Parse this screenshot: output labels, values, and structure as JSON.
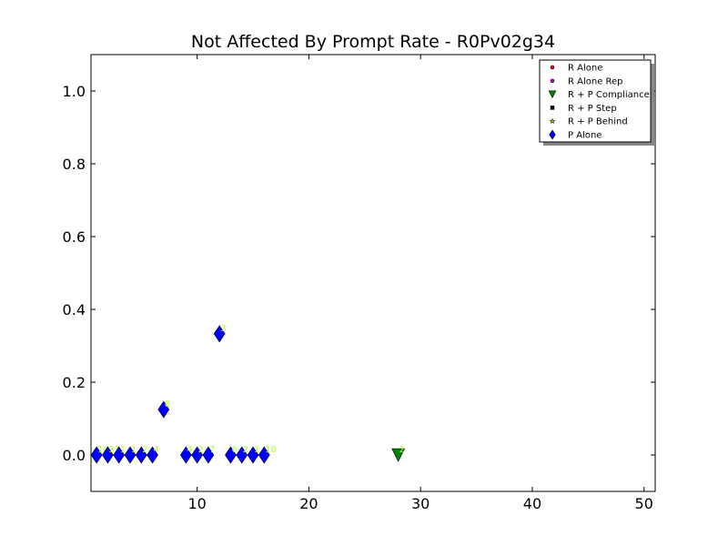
{
  "chart_data": {
    "type": "scatter",
    "title": "Not Affected By Prompt Rate - R0Pv02g34",
    "xlabel": "",
    "ylabel": "",
    "xlim": [
      0.5,
      51
    ],
    "ylim": [
      -0.1,
      1.1
    ],
    "xticks": [
      10,
      20,
      30,
      40,
      50
    ],
    "yticks": [
      0.0,
      0.2,
      0.4,
      0.6,
      0.8,
      1.0
    ],
    "xtick_labels": [
      "10",
      "20",
      "30",
      "40",
      "50"
    ],
    "ytick_labels": [
      "0.0",
      "0.2",
      "0.4",
      "0.6",
      "0.8",
      "1.0"
    ],
    "grid": false,
    "legend_position": "top-right",
    "series": [
      {
        "name": "R Alone",
        "marker": "circle",
        "color": "#ff0000",
        "points": []
      },
      {
        "name": "R Alone Rep",
        "marker": "circle",
        "color": "#bf00bf",
        "points": []
      },
      {
        "name": "R + P Compliance",
        "marker": "triangle-down",
        "color": "#008000",
        "points": [
          {
            "x": 28,
            "y": 0.0,
            "label": "2"
          }
        ]
      },
      {
        "name": "R + P Step",
        "marker": "square",
        "color": "#000000",
        "points": []
      },
      {
        "name": "R + P Behind",
        "marker": "star",
        "color": "#ffff00",
        "points": []
      },
      {
        "name": "P Alone",
        "marker": "thin-diamond",
        "color": "#0000ff",
        "points": [
          {
            "x": 1,
            "y": 0.0,
            "label": "16"
          },
          {
            "x": 2,
            "y": 0.0,
            "label": "31"
          },
          {
            "x": 3,
            "y": 0.0,
            "label": "1"
          },
          {
            "x": 4,
            "y": 0.0,
            "label": "1"
          },
          {
            "x": 5,
            "y": 0.0,
            "label": "2"
          },
          {
            "x": 6,
            "y": 0.0,
            "label": "4"
          },
          {
            "x": 7,
            "y": 0.125,
            "label": "8"
          },
          {
            "x": 9,
            "y": 0.0,
            "label": "4"
          },
          {
            "x": 10,
            "y": 0.0,
            "label": "2"
          },
          {
            "x": 11,
            "y": 0.0,
            "label": "7"
          },
          {
            "x": 12,
            "y": 0.333,
            "label": "3"
          },
          {
            "x": 13,
            "y": 0.0,
            "label": "6"
          },
          {
            "x": 14,
            "y": 0.0,
            "label": "2"
          },
          {
            "x": 15,
            "y": 0.0,
            "label": "1"
          },
          {
            "x": 16,
            "y": 0.0,
            "label": "10"
          }
        ]
      }
    ]
  }
}
